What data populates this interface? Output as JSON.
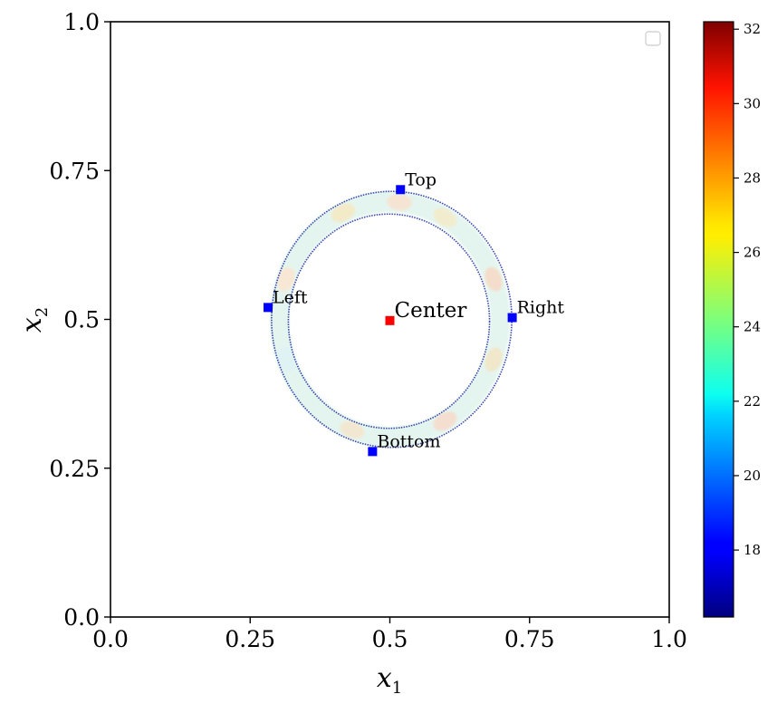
{
  "chart_data": {
    "type": "scatter",
    "title": "",
    "xlabel": "x",
    "xlabel_sub": "1",
    "ylabel": "x",
    "ylabel_sub": "2",
    "xlim": [
      0.0,
      1.0
    ],
    "ylim": [
      0.0,
      1.0
    ],
    "xticks": [
      "0.0",
      "0.25",
      "0.5",
      "0.75",
      "1.0"
    ],
    "yticks": [
      "0.0",
      "0.25",
      "0.5",
      "0.75",
      "1.0"
    ],
    "grid": false,
    "legend": {
      "placement": "top-right",
      "entries": []
    },
    "ring": {
      "center": [
        0.5,
        0.5
      ],
      "inner_radius": 0.18,
      "outer_radius": 0.215,
      "colormap": "jet"
    },
    "points": [
      {
        "label": "Center",
        "x": 0.5,
        "y": 0.498,
        "color": "#ff0000"
      },
      {
        "label": "Top",
        "x": 0.519,
        "y": 0.718,
        "color": "#0000ff"
      },
      {
        "label": "Left",
        "x": 0.282,
        "y": 0.52,
        "color": "#0000ff"
      },
      {
        "label": "Right",
        "x": 0.719,
        "y": 0.503,
        "color": "#0000ff"
      },
      {
        "label": "Bottom",
        "x": 0.469,
        "y": 0.278,
        "color": "#0000ff"
      }
    ],
    "colorbar": {
      "min": 16.2,
      "max": 32.2,
      "ticks": [
        "18",
        "20",
        "22",
        "24",
        "26",
        "28",
        "30",
        "32"
      ],
      "colormap": "jet"
    }
  }
}
